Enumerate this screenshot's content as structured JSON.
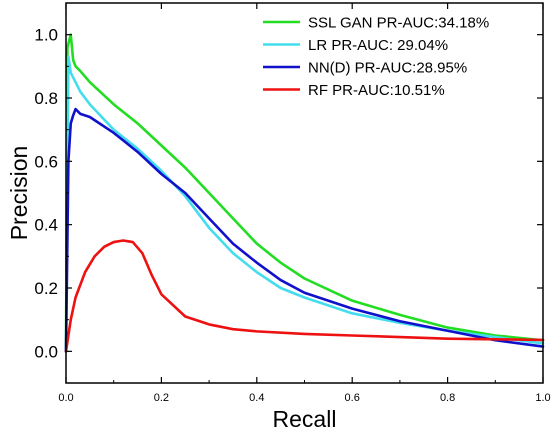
{
  "chart_data": {
    "type": "line",
    "xlabel": "Recall",
    "ylabel": "Precision",
    "xlim": [
      0,
      1
    ],
    "ylim": [
      -0.1,
      1.1
    ],
    "x_ticks": [
      0.0,
      0.2,
      0.4,
      0.6,
      0.8,
      1.0
    ],
    "x_tick_labels": [
      "0.0",
      "0.2",
      "0.4",
      "0.6",
      "0.8",
      "1.0"
    ],
    "y_ticks": [
      0.0,
      0.2,
      0.4,
      0.6,
      0.8,
      1.0
    ],
    "y_tick_labels": [
      "0.0",
      "0.2",
      "0.4",
      "0.6",
      "0.8",
      "1.0"
    ],
    "grid": false,
    "legend_position": "top-right",
    "series": [
      {
        "name": "SSL GAN PR-AUC:34.18%",
        "color": "#22dd22",
        "points": [
          [
            0.0,
            0.0
          ],
          [
            0.003,
            0.96
          ],
          [
            0.01,
            1.0
          ],
          [
            0.015,
            0.92
          ],
          [
            0.02,
            0.9
          ],
          [
            0.03,
            0.885
          ],
          [
            0.05,
            0.85
          ],
          [
            0.1,
            0.78
          ],
          [
            0.15,
            0.72
          ],
          [
            0.2,
            0.65
          ],
          [
            0.25,
            0.58
          ],
          [
            0.3,
            0.5
          ],
          [
            0.35,
            0.42
          ],
          [
            0.4,
            0.34
          ],
          [
            0.45,
            0.28
          ],
          [
            0.5,
            0.23
          ],
          [
            0.6,
            0.16
          ],
          [
            0.7,
            0.115
          ],
          [
            0.8,
            0.075
          ],
          [
            0.9,
            0.05
          ],
          [
            1.0,
            0.035
          ]
        ]
      },
      {
        "name": "LR PR-AUC: 29.04%",
        "color": "#44ddee",
        "points": [
          [
            0.0,
            0.0
          ],
          [
            0.005,
            0.93
          ],
          [
            0.01,
            0.88
          ],
          [
            0.02,
            0.85
          ],
          [
            0.03,
            0.82
          ],
          [
            0.05,
            0.78
          ],
          [
            0.1,
            0.7
          ],
          [
            0.15,
            0.64
          ],
          [
            0.2,
            0.57
          ],
          [
            0.25,
            0.49
          ],
          [
            0.3,
            0.39
          ],
          [
            0.35,
            0.31
          ],
          [
            0.4,
            0.25
          ],
          [
            0.45,
            0.2
          ],
          [
            0.5,
            0.17
          ],
          [
            0.6,
            0.12
          ],
          [
            0.7,
            0.09
          ],
          [
            0.8,
            0.065
          ],
          [
            0.9,
            0.045
          ],
          [
            1.0,
            0.025
          ]
        ]
      },
      {
        "name": "NN(D) PR-AUC:28.95%",
        "color": "#1111cc",
        "points": [
          [
            0.0,
            0.0
          ],
          [
            0.005,
            0.6
          ],
          [
            0.01,
            0.72
          ],
          [
            0.015,
            0.745
          ],
          [
            0.02,
            0.765
          ],
          [
            0.03,
            0.75
          ],
          [
            0.05,
            0.74
          ],
          [
            0.1,
            0.69
          ],
          [
            0.15,
            0.63
          ],
          [
            0.2,
            0.56
          ],
          [
            0.25,
            0.5
          ],
          [
            0.3,
            0.42
          ],
          [
            0.35,
            0.34
          ],
          [
            0.4,
            0.28
          ],
          [
            0.45,
            0.225
          ],
          [
            0.5,
            0.185
          ],
          [
            0.6,
            0.135
          ],
          [
            0.7,
            0.095
          ],
          [
            0.8,
            0.065
          ],
          [
            0.9,
            0.035
          ],
          [
            1.0,
            0.015
          ]
        ]
      },
      {
        "name": "RF PR-AUC:10.51%",
        "color": "#ee1111",
        "points": [
          [
            0.0,
            0.0
          ],
          [
            0.01,
            0.1
          ],
          [
            0.02,
            0.17
          ],
          [
            0.04,
            0.25
          ],
          [
            0.06,
            0.3
          ],
          [
            0.08,
            0.33
          ],
          [
            0.1,
            0.345
          ],
          [
            0.12,
            0.35
          ],
          [
            0.14,
            0.345
          ],
          [
            0.16,
            0.31
          ],
          [
            0.18,
            0.24
          ],
          [
            0.2,
            0.18
          ],
          [
            0.25,
            0.11
          ],
          [
            0.3,
            0.085
          ],
          [
            0.35,
            0.07
          ],
          [
            0.4,
            0.063
          ],
          [
            0.5,
            0.055
          ],
          [
            0.6,
            0.05
          ],
          [
            0.7,
            0.045
          ],
          [
            0.8,
            0.04
          ],
          [
            0.9,
            0.038
          ],
          [
            1.0,
            0.036
          ]
        ]
      }
    ]
  }
}
